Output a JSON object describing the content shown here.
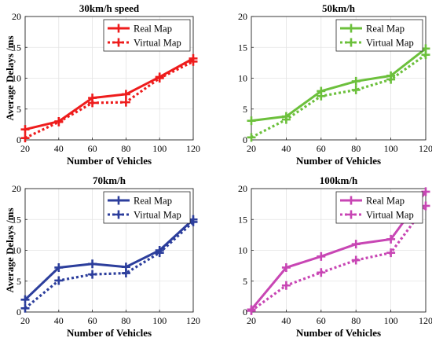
{
  "chart_data": [
    {
      "type": "line",
      "title": "30km/h speed",
      "xlabel": "Number of Vehicles",
      "ylabel": "Average Delays /ms",
      "x": [
        20,
        40,
        60,
        80,
        100,
        120
      ],
      "xlim": [
        20,
        120
      ],
      "ylim": [
        0,
        20
      ],
      "xticks": [
        20,
        40,
        60,
        80,
        100,
        120
      ],
      "yticks": [
        0,
        5,
        10,
        15,
        20
      ],
      "grid": true,
      "legend": "top-right",
      "color": "#ee1c1c",
      "series": [
        {
          "name": "Real Map",
          "style": "solid",
          "values": [
            1.7,
            3.0,
            6.8,
            7.4,
            10.2,
            13.2
          ]
        },
        {
          "name": "Virtual Map",
          "style": "dotted",
          "values": [
            0.3,
            2.9,
            6.0,
            6.1,
            10.0,
            12.7
          ]
        }
      ]
    },
    {
      "type": "line",
      "title": "50km/h",
      "xlabel": "Number of Vehicles",
      "ylabel": "",
      "x": [
        20,
        40,
        60,
        80,
        100,
        120
      ],
      "xlim": [
        20,
        120
      ],
      "ylim": [
        0,
        20
      ],
      "xticks": [
        20,
        40,
        60,
        80,
        100,
        120
      ],
      "yticks": [
        0,
        5,
        10,
        15,
        20
      ],
      "grid": true,
      "legend": "top-right",
      "color": "#6cc03c",
      "series": [
        {
          "name": "Real Map",
          "style": "solid",
          "values": [
            3.1,
            3.8,
            7.9,
            9.5,
            10.4,
            14.8
          ]
        },
        {
          "name": "Virtual Map",
          "style": "dotted",
          "values": [
            0.4,
            3.3,
            7.1,
            8.1,
            9.8,
            13.8
          ]
        }
      ]
    },
    {
      "type": "line",
      "title": "70km/h",
      "xlabel": "Number of Vehicles",
      "ylabel": "Average Delays /ms",
      "x": [
        20,
        40,
        60,
        80,
        100,
        120
      ],
      "xlim": [
        20,
        120
      ],
      "ylim": [
        0,
        20
      ],
      "xticks": [
        20,
        40,
        60,
        80,
        100,
        120
      ],
      "yticks": [
        0,
        5,
        10,
        15,
        20
      ],
      "grid": true,
      "legend": "top-right",
      "color": "#2c3e9c",
      "series": [
        {
          "name": "Real Map",
          "style": "solid",
          "values": [
            2.0,
            7.2,
            7.8,
            7.3,
            10.0,
            15.0
          ]
        },
        {
          "name": "Virtual Map",
          "style": "dotted",
          "values": [
            0.6,
            5.1,
            6.1,
            6.3,
            9.6,
            14.6
          ]
        }
      ]
    },
    {
      "type": "line",
      "title": "100km/h",
      "xlabel": "Number of Vehicles",
      "ylabel": "",
      "x": [
        20,
        40,
        60,
        80,
        100,
        120
      ],
      "xlim": [
        20,
        120
      ],
      "ylim": [
        0,
        20
      ],
      "xticks": [
        20,
        40,
        60,
        80,
        100,
        120
      ],
      "yticks": [
        0,
        5,
        10,
        15,
        20
      ],
      "grid": true,
      "legend": "top-right",
      "color": "#c846b4",
      "series": [
        {
          "name": "Real Map",
          "style": "solid",
          "values": [
            0.4,
            7.2,
            9.0,
            11.0,
            11.8,
            19.5
          ]
        },
        {
          "name": "Virtual Map",
          "style": "dotted",
          "values": [
            0.2,
            4.3,
            6.4,
            8.4,
            9.6,
            17.2
          ]
        }
      ]
    }
  ]
}
